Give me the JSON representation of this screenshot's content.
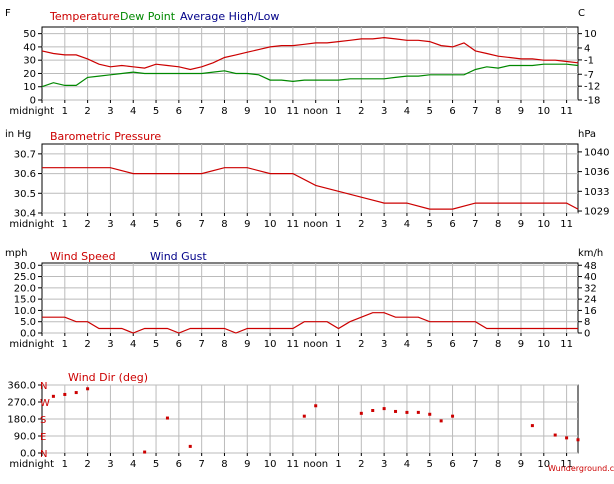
{
  "x_ticks": [
    "midnight",
    "1",
    "2",
    "3",
    "4",
    "5",
    "6",
    "7",
    "8",
    "9",
    "10",
    "11",
    "noon",
    "1",
    "2",
    "3",
    "4",
    "5",
    "6",
    "7",
    "8",
    "9",
    "10",
    "11"
  ],
  "credit": "Wunderground.com",
  "colors": {
    "red": "#cc0000",
    "green": "#008800",
    "blue": "#000088",
    "grid": "#bbbbbb"
  },
  "chart_data": [
    {
      "type": "line",
      "left_unit": "F",
      "right_unit": "C",
      "legend": [
        "Temperature",
        "Dew Point",
        "Average High/Low"
      ],
      "ylim": [
        0,
        55
      ],
      "y_ticks": [
        0,
        10,
        20,
        30,
        40,
        50
      ],
      "right_ticks": [
        "-18",
        "-12",
        "-7",
        "-1",
        "4",
        "10"
      ],
      "right_tick_values": [
        0,
        10.4,
        19.4,
        30.2,
        39.2,
        50
      ],
      "series": [
        {
          "name": "Temperature",
          "color": "red",
          "x": [
            0,
            0.5,
            1,
            1.5,
            2,
            2.5,
            3,
            3.5,
            4,
            4.5,
            5,
            5.5,
            6,
            6.5,
            7,
            7.5,
            8,
            8.5,
            9,
            9.5,
            10,
            10.5,
            11,
            11.5,
            12,
            12.5,
            13,
            13.5,
            14,
            14.5,
            15,
            15.5,
            16,
            16.5,
            17,
            17.5,
            18,
            18.5,
            19,
            19.5,
            20,
            20.5,
            21,
            21.5,
            22,
            22.5,
            23,
            23.5
          ],
          "y": [
            37,
            35,
            34,
            34,
            31,
            27,
            25,
            26,
            25,
            24,
            27,
            26,
            25,
            23,
            25,
            28,
            32,
            34,
            36,
            38,
            40,
            41,
            41,
            42,
            43,
            43,
            44,
            45,
            46,
            46,
            47,
            46,
            45,
            45,
            44,
            41,
            40,
            43,
            37,
            35,
            33,
            32,
            31,
            31,
            30,
            30,
            29,
            28
          ]
        },
        {
          "name": "Dew Point",
          "color": "green",
          "x": [
            0,
            0.5,
            1,
            1.5,
            2,
            2.5,
            3,
            3.5,
            4,
            4.5,
            5,
            5.5,
            6,
            6.5,
            7,
            7.5,
            8,
            8.5,
            9,
            9.5,
            10,
            10.5,
            11,
            11.5,
            12,
            12.5,
            13,
            13.5,
            14,
            14.5,
            15,
            15.5,
            16,
            16.5,
            17,
            17.5,
            18,
            18.5,
            19,
            19.5,
            20,
            20.5,
            21,
            21.5,
            22,
            22.5,
            23,
            23.5
          ],
          "y": [
            10,
            13,
            11,
            11,
            17,
            18,
            19,
            20,
            21,
            20,
            20,
            20,
            20,
            20,
            20,
            21,
            22,
            20,
            20,
            19,
            15,
            15,
            14,
            15,
            15,
            15,
            15,
            16,
            16,
            16,
            16,
            17,
            18,
            18,
            19,
            19,
            19,
            19,
            23,
            25,
            24,
            26,
            26,
            26,
            27,
            27,
            27,
            26
          ]
        }
      ]
    },
    {
      "type": "line",
      "left_unit": "in Hg",
      "right_unit": "hPa",
      "legend": [
        "Barometric Pressure"
      ],
      "ylim": [
        30.4,
        30.75
      ],
      "y_ticks": [
        30.4,
        30.5,
        30.6,
        30.7
      ],
      "y_tick_labels": [
        "30.4",
        "30.5",
        "30.6",
        "30.7"
      ],
      "right_ticks": [
        "1029",
        "1033",
        "1036",
        "1040"
      ],
      "right_tick_values": [
        30.41,
        30.51,
        30.61,
        30.71
      ],
      "series": [
        {
          "name": "Barometric Pressure",
          "color": "red",
          "x": [
            0,
            1,
            2,
            3,
            4,
            5,
            6,
            7,
            8,
            9,
            10,
            11,
            12,
            13,
            14,
            15,
            16,
            17,
            18,
            19,
            20,
            21,
            22,
            23,
            23.5
          ],
          "y": [
            30.63,
            30.63,
            30.63,
            30.63,
            30.6,
            30.6,
            30.6,
            30.6,
            30.63,
            30.63,
            30.6,
            30.6,
            30.54,
            30.51,
            30.48,
            30.45,
            30.45,
            30.42,
            30.42,
            30.45,
            30.45,
            30.45,
            30.45,
            30.45,
            30.42
          ]
        }
      ]
    },
    {
      "type": "line",
      "left_unit": "mph",
      "right_unit": "km/h",
      "legend": [
        "Wind Speed",
        "Wind Gust"
      ],
      "ylim": [
        0,
        31
      ],
      "y_ticks": [
        0,
        5,
        10,
        15,
        20,
        25,
        30
      ],
      "y_tick_labels": [
        "0.0",
        "5.0",
        "10.0",
        "15.0",
        "20.0",
        "25.0",
        "30.0"
      ],
      "right_ticks": [
        "0",
        "8",
        "16",
        "24",
        "32",
        "40",
        "48"
      ],
      "right_tick_values": [
        0,
        5,
        10,
        15,
        20,
        25,
        30
      ],
      "series": [
        {
          "name": "Wind Speed",
          "color": "red",
          "x": [
            0,
            0.5,
            1,
            1.5,
            2,
            2.5,
            3,
            3.5,
            4,
            4.5,
            5,
            5.5,
            6,
            6.5,
            7,
            7.5,
            8,
            8.5,
            9,
            9.5,
            10,
            10.5,
            11,
            11.5,
            12,
            12.5,
            13,
            13.5,
            14,
            14.5,
            15,
            15.5,
            16,
            16.5,
            17,
            17.5,
            18,
            18.5,
            19,
            19.5,
            20,
            20.5,
            21,
            21.5,
            22,
            22.5,
            23,
            23.5
          ],
          "y": [
            7,
            7,
            7,
            5,
            5,
            2,
            2,
            2,
            0,
            2,
            2,
            2,
            0,
            2,
            2,
            2,
            2,
            0,
            2,
            2,
            2,
            2,
            2,
            5,
            5,
            5,
            2,
            5,
            7,
            9,
            9,
            7,
            7,
            7,
            5,
            5,
            5,
            5,
            5,
            2,
            2,
            2,
            2,
            2,
            2,
            2,
            2,
            2
          ]
        }
      ]
    },
    {
      "type": "scatter",
      "left_unit": "",
      "right_unit": "",
      "legend": [
        "Wind Dir (deg)"
      ],
      "ylim": [
        0,
        360
      ],
      "y_ticks": [
        0,
        90,
        180,
        270,
        360
      ],
      "y_tick_labels": [
        "0.0",
        "90.0",
        "180.0",
        "270.0",
        "360.0"
      ],
      "compass_labels": [
        "N",
        "E",
        "S",
        "W",
        "N"
      ],
      "series": [
        {
          "name": "Wind Dir (deg)",
          "color": "red",
          "x": [
            0.5,
            1,
            1.5,
            2,
            4.5,
            5.5,
            6.5,
            11.5,
            12,
            14,
            14.5,
            15,
            15.5,
            16,
            16.5,
            17,
            17.5,
            18,
            21.5,
            22.5,
            23,
            23.5
          ],
          "y": [
            300,
            310,
            320,
            340,
            5,
            185,
            35,
            195,
            250,
            210,
            225,
            235,
            220,
            215,
            215,
            205,
            170,
            195,
            145,
            95,
            80,
            70
          ]
        }
      ]
    }
  ]
}
